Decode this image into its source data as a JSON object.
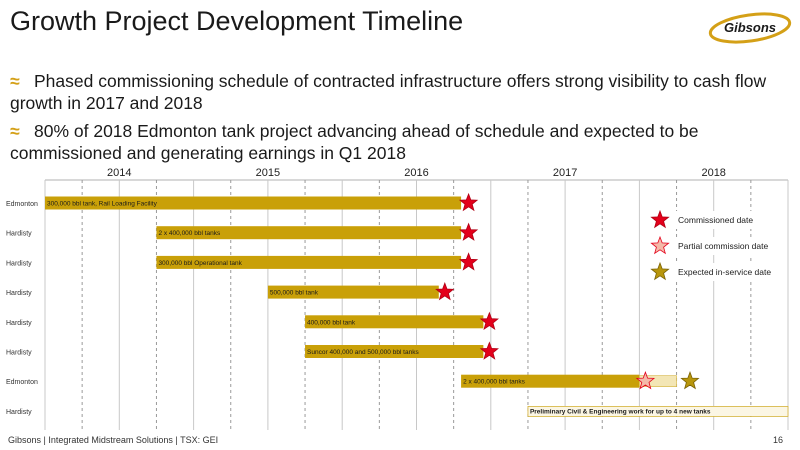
{
  "slide": {
    "title": "Growth Project Development Timeline",
    "bullets": [
      "Phased commissioning schedule of contracted infrastructure offers strong visibility to cash flow growth in 2017 and 2018",
      "80% of 2018 Edmonton tank project advancing ahead of schedule and expected to be commissioned and generating earnings in Q1 2018"
    ],
    "bullet_marker": "≈",
    "footer": "Gibsons  |  Integrated Midstream Solutions  |  TSX: GEI",
    "page_number": "16",
    "logo_text": "Gibsons"
  },
  "colors": {
    "bar": "#c9a008",
    "bar_light": "#f3e6b5",
    "bar_outline": "#d4b23a",
    "commissioned": "#e3001b",
    "partial": "#f4b9a8",
    "expected": "#b8960c",
    "accent": "#d4a017"
  },
  "chart_data": {
    "type": "gantt",
    "years": [
      "2014",
      "2015",
      "2016",
      "2017",
      "2018"
    ],
    "x_start": 2013.5,
    "x_end": 2018.5,
    "rows": [
      {
        "location": "Edmonton",
        "label": "300,000 bbl tank, Rail Loading Facility",
        "start": 2013.5,
        "end": 2016.3,
        "markers": [
          {
            "type": "commissioned",
            "at": 2016.31
          }
        ]
      },
      {
        "location": "Hardisty",
        "label": "2 x 400,000 bbl tanks",
        "start": 2014.25,
        "end": 2016.3,
        "markers": [
          {
            "type": "commissioned",
            "at": 2016.31
          }
        ]
      },
      {
        "location": "Hardisty",
        "label": "300,000 bbl Operational tank",
        "start": 2014.25,
        "end": 2016.3,
        "markers": [
          {
            "type": "commissioned",
            "at": 2016.31
          }
        ]
      },
      {
        "location": "Hardisty",
        "label": "500,000 bbl tank",
        "start": 2015.0,
        "end": 2016.15,
        "markers": [
          {
            "type": "commissioned",
            "at": 2016.15
          }
        ]
      },
      {
        "location": "Hardisty",
        "label": "400,000 bbl tank",
        "start": 2015.25,
        "end": 2016.45,
        "markers": [
          {
            "type": "commissioned",
            "at": 2016.45
          }
        ]
      },
      {
        "location": "Hardisty",
        "label": "Suncor 400,000 and 500,000 bbl tanks",
        "start": 2015.25,
        "end": 2016.45,
        "markers": [
          {
            "type": "commissioned",
            "at": 2016.45
          }
        ]
      },
      {
        "location": "Edmonton",
        "label": "2 x 400,000 bbl tanks",
        "start": 2016.3,
        "end": 2017.5,
        "light_end": 2017.75,
        "markers": [
          {
            "type": "partial",
            "at": 2017.5
          },
          {
            "type": "expected",
            "at": 2017.8
          }
        ]
      },
      {
        "location": "Hardisty",
        "label": "Preliminary Civil & Engineering work for up to 4 new tanks",
        "start": 2016.75,
        "end": 2018.5,
        "light": true,
        "markers": []
      }
    ],
    "legend": [
      {
        "type": "commissioned",
        "label": "Commissioned date"
      },
      {
        "type": "partial",
        "label": "Partial commission date"
      },
      {
        "type": "expected",
        "label": "Expected in-service date"
      }
    ]
  }
}
